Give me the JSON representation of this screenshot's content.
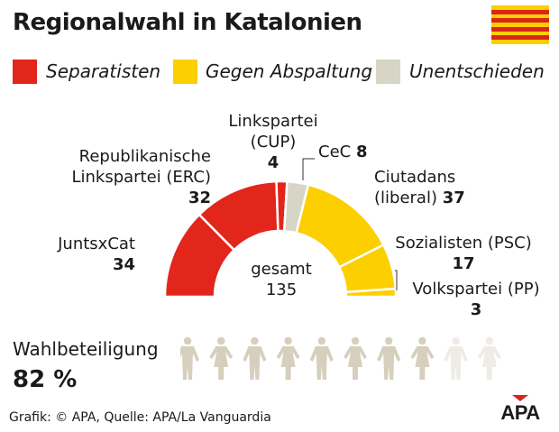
{
  "title": "Regionalwahl in Katalonien",
  "legend": [
    {
      "label": "Separatisten",
      "color": "#e2261c"
    },
    {
      "label": "Gegen Abspaltung",
      "color": "#fccf00"
    },
    {
      "label": "Unentschieden",
      "color": "#d7d6c6"
    }
  ],
  "flag": {
    "colors": [
      "#fccf00",
      "#d8261a"
    ],
    "icon": "catalonia-flag"
  },
  "chart_data": {
    "type": "pie",
    "subtype": "half-donut",
    "center_label": "gesamt",
    "total": 135,
    "slices": [
      {
        "name_lines": [
          "JuntsxCat"
        ],
        "value": 34,
        "group": "Separatisten",
        "color": "#e2261c"
      },
      {
        "name_lines": [
          "Republikanische",
          "Linkspartei (ERC)"
        ],
        "value": 32,
        "group": "Separatisten",
        "color": "#e2261c"
      },
      {
        "name_lines": [
          "Linkspartei",
          "(CUP)"
        ],
        "value": 4,
        "group": "Separatisten",
        "color": "#e2261c"
      },
      {
        "name_lines": [
          "CeC"
        ],
        "value": 8,
        "group": "Unentschieden",
        "color": "#d7d6c6"
      },
      {
        "name_lines": [
          "Ciutadans",
          "(liberal)"
        ],
        "value": 37,
        "group": "Gegen Abspaltung",
        "color": "#fccf00"
      },
      {
        "name_lines": [
          "Sozialisten (PSC)"
        ],
        "value": 17,
        "group": "Gegen Abspaltung",
        "color": "#fccf00"
      },
      {
        "name_lines": [
          "Volkspartei (PP)"
        ],
        "value": 3,
        "group": "Gegen Abspaltung",
        "color": "#fccf00"
      }
    ]
  },
  "turnout": {
    "label": "Wahlbeteiligung",
    "value_text": "82 %",
    "value": 82,
    "icon": "person-icon",
    "icons_total": 10,
    "icons_filled": 8,
    "filled_color": "#d7cfbd",
    "empty_color": "#efece5"
  },
  "footer": {
    "source": "Grafik: © APA, Quelle: APA/La Vanguardia",
    "logo": "APA"
  }
}
